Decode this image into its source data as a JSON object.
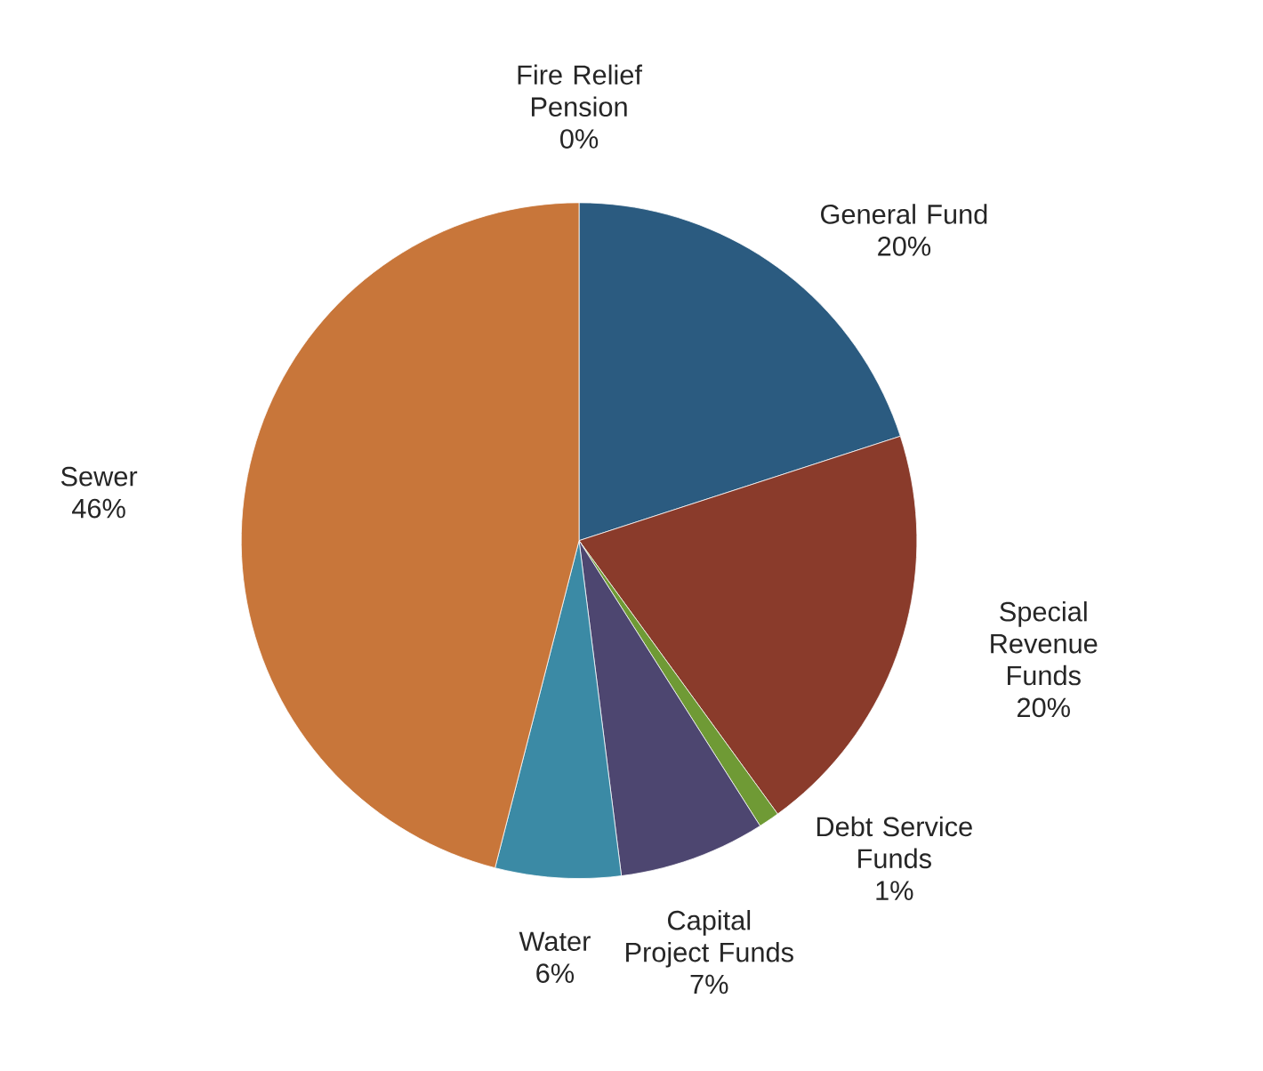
{
  "chart_data": {
    "type": "pie",
    "categories": [
      "General Fund",
      "Special Revenue Funds",
      "Debt Service Funds",
      "Capital Project Funds",
      "Water",
      "Sewer",
      "Fire Relief Pension"
    ],
    "values": [
      20,
      20,
      1,
      7,
      6,
      46,
      0
    ],
    "value_labels": [
      "20%",
      "20%",
      "1%",
      "7%",
      "6%",
      "46%",
      "0%"
    ],
    "colors": [
      "#2b5b80",
      "#8a3b2b",
      "#6f9a35",
      "#4d4670",
      "#3b8aa5",
      "#c8763a",
      "#7a9fc9"
    ]
  }
}
